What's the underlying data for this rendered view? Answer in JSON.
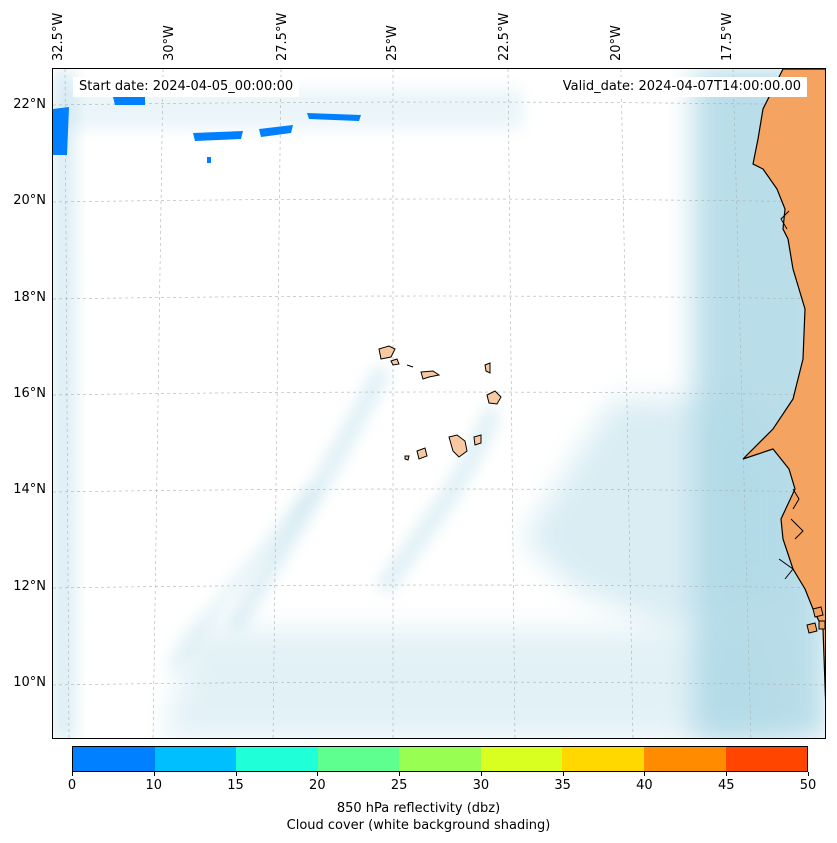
{
  "map": {
    "lon_labels": [
      "32.5°W",
      "30°W",
      "27.5°W",
      "25°W",
      "22.5°W",
      "20°W",
      "17.5°W"
    ],
    "lat_labels": [
      "22°N",
      "20°N",
      "18°N",
      "16°N",
      "14°N",
      "12°N",
      "10°N"
    ],
    "start_date": "Start date: 2024-04-05_00:00:00",
    "valid_date": "Valid_date: 2024-04-07T14:00:00.00",
    "colors": {
      "land": "#f4a460",
      "island": "#f8c8a0",
      "cloud": "#add8e6",
      "coast": "#000000",
      "reflectivity_low": "#007fff"
    }
  },
  "colorbar": {
    "colors": [
      "#007fff",
      "#00bfff",
      "#1fffd8",
      "#5fff8f",
      "#98ff52",
      "#d8ff1f",
      "#ffd800",
      "#ff8c00",
      "#ff4500"
    ],
    "ticks": [
      "0",
      "10",
      "15",
      "20",
      "25",
      "30",
      "35",
      "40",
      "45",
      "50"
    ],
    "label": "850 hPa reflectivity (dbz)",
    "sublabel": "Cloud cover (white background shading)"
  }
}
